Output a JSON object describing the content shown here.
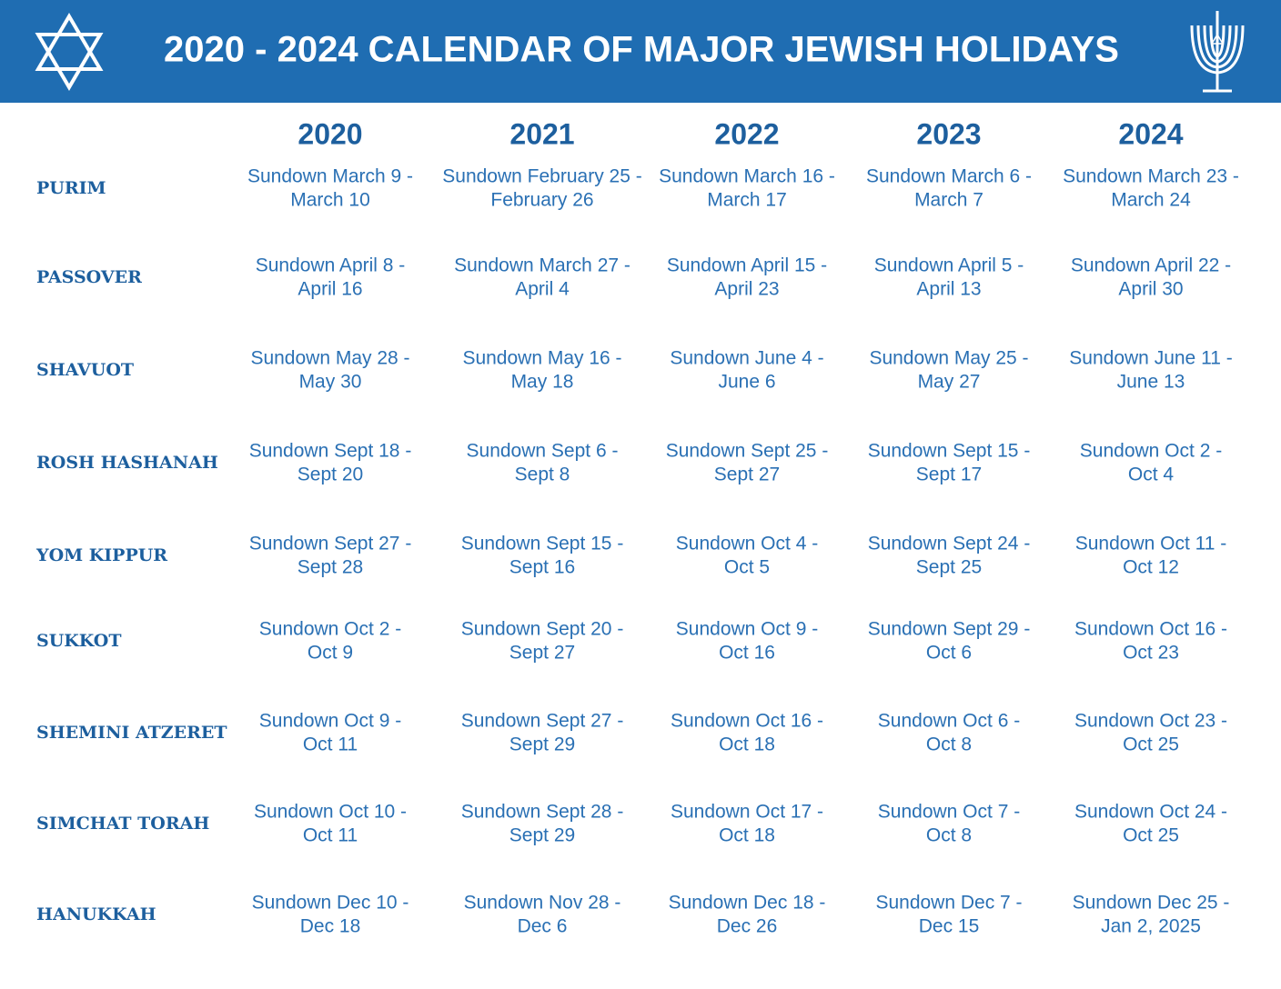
{
  "header": {
    "title": "2020 - 2024 CALENDAR OF MAJOR JEWISH HOLIDAYS"
  },
  "table": {
    "years": [
      "2020",
      "2021",
      "2022",
      "2023",
      "2024"
    ],
    "rows": [
      {
        "name": "PURIM",
        "cells": [
          [
            "Sundown March 9 -",
            "March 10"
          ],
          [
            "Sundown February 25 -",
            "February 26"
          ],
          [
            "Sundown March 16 -",
            "March 17"
          ],
          [
            "Sundown March 6 -",
            "March 7"
          ],
          [
            "Sundown March 23 -",
            "March 24"
          ]
        ]
      },
      {
        "name": "PASSOVER",
        "cells": [
          [
            "Sundown April 8 -",
            "April 16"
          ],
          [
            "Sundown March 27 -",
            "April 4"
          ],
          [
            "Sundown April 15 -",
            "April 23"
          ],
          [
            "Sundown April 5 -",
            "April 13"
          ],
          [
            "Sundown April 22 -",
            "April 30"
          ]
        ]
      },
      {
        "name": "SHAVUOT",
        "cells": [
          [
            "Sundown May 28 -",
            "May 30"
          ],
          [
            "Sundown May 16 -",
            "May 18"
          ],
          [
            "Sundown June 4 -",
            "June 6"
          ],
          [
            "Sundown May 25 -",
            "May 27"
          ],
          [
            "Sundown June 11 -",
            "June 13"
          ]
        ]
      },
      {
        "name": "ROSH HASHANAH",
        "cells": [
          [
            "Sundown Sept 18 -",
            "Sept 20"
          ],
          [
            "Sundown Sept 6 -",
            "Sept 8"
          ],
          [
            "Sundown Sept 25 -",
            "Sept 27"
          ],
          [
            "Sundown Sept 15 -",
            "Sept 17"
          ],
          [
            "Sundown Oct 2 -",
            "Oct 4"
          ]
        ]
      },
      {
        "name": "YOM KIPPUR",
        "cells": [
          [
            "Sundown Sept 27 -",
            "Sept 28"
          ],
          [
            "Sundown Sept 15 -",
            "Sept 16"
          ],
          [
            "Sundown Oct 4 -",
            "Oct 5"
          ],
          [
            "Sundown Sept 24 -",
            "Sept 25"
          ],
          [
            "Sundown Oct 11 -",
            "Oct 12"
          ]
        ]
      },
      {
        "name": "SUKKOT",
        "cells": [
          [
            "Sundown Oct 2 -",
            "Oct 9"
          ],
          [
            "Sundown Sept 20 -",
            "Sept 27"
          ],
          [
            "Sundown Oct 9 -",
            "Oct 16"
          ],
          [
            "Sundown Sept 29 -",
            "Oct 6"
          ],
          [
            "Sundown Oct 16 -",
            "Oct 23"
          ]
        ]
      },
      {
        "name": "SHEMINI ATZERET",
        "cells": [
          [
            "Sundown Oct 9 -",
            "Oct 11"
          ],
          [
            "Sundown Sept 27 -",
            "Sept 29"
          ],
          [
            "Sundown Oct 16 -",
            "Oct 18"
          ],
          [
            "Sundown Oct 6 -",
            "Oct 8"
          ],
          [
            "Sundown Oct 23 -",
            "Oct 25"
          ]
        ]
      },
      {
        "name": "SIMCHAT TORAH",
        "cells": [
          [
            "Sundown Oct 10 -",
            "Oct 11"
          ],
          [
            "Sundown Sept 28 -",
            "Sept 29"
          ],
          [
            "Sundown Oct 17 -",
            "Oct 18"
          ],
          [
            "Sundown Oct 7 -",
            "Oct 8"
          ],
          [
            "Sundown Oct 24 -",
            "Oct 25"
          ]
        ]
      },
      {
        "name": "HANUKKAH",
        "cells": [
          [
            "Sundown Dec 10 -",
            "Dec 18"
          ],
          [
            "Sundown Nov 28 -",
            "Dec 6"
          ],
          [
            "Sundown Dec 18 -",
            "Dec 26"
          ],
          [
            "Sundown Dec 7 -",
            "Dec 15"
          ],
          [
            "Sundown Dec 25 -",
            "Jan 2, 2025"
          ]
        ]
      }
    ]
  }
}
